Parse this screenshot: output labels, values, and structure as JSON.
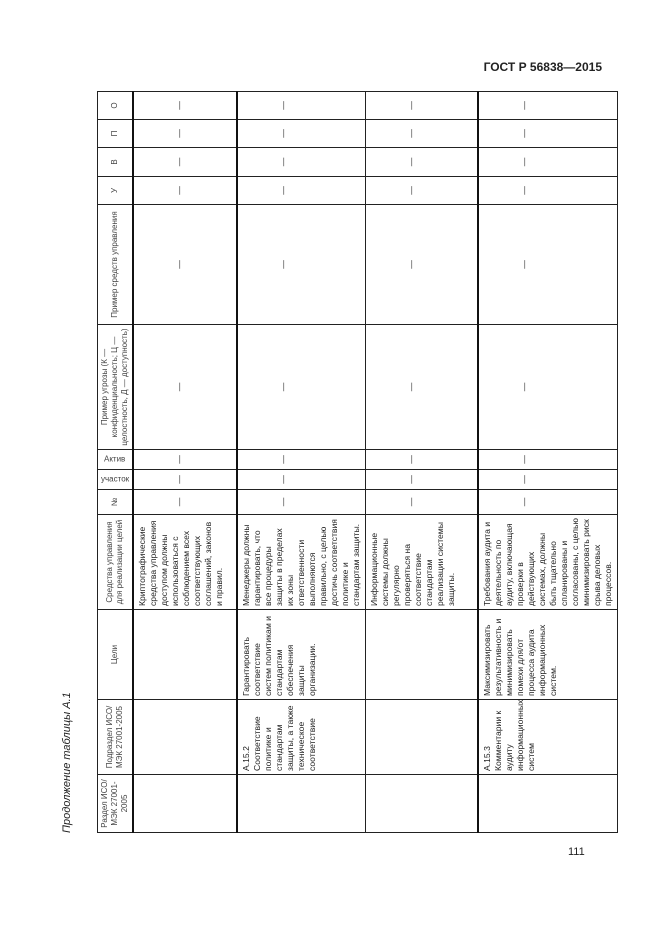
{
  "header": {
    "standard": "ГОСТ Р 56838—2015"
  },
  "caption": "Продолжение таблицы А.1",
  "table": {
    "columns": [
      "Раздел ИСО/МЭК 27001-2005",
      "Подраздел ИСО/МЭК 27001-2005",
      "Цели",
      "Средства управления для реализации целей",
      "№",
      "участок",
      "Актив",
      "Пример угрозы (К — конфиденциальность; Ц — целостность, Д — доступность)",
      "Пример средств управления",
      "У",
      "В",
      "П",
      "О"
    ],
    "rows": [
      [
        "",
        "",
        "",
        "Криптографические средства управления доступом должны использоваться с соблюдением всех соответствующих соглашений, законов и правил.",
        "—",
        "—",
        "—",
        "—",
        "—",
        "—",
        "—",
        "—",
        "—"
      ],
      [
        "",
        "А.15.2 Соответствие политике и стандартам защиты, а также техническое соответствие",
        "Гарантировать соответствие систем политикам и стандартам обеспечения защиты организации.",
        "Менеджеры должны гарантировать, что все процедуры защиты в пределах их зоны ответственности выполняются правильно, с целью достичь соответствия политике и стандартам защиты.",
        "—",
        "—",
        "—",
        "—",
        "—",
        "—",
        "—",
        "—",
        "—"
      ],
      [
        "",
        "",
        "",
        "Информационные системы должны регулярно проверяться на соответствие стандартам реализации системы защиты.",
        "—",
        "—",
        "—",
        "—",
        "—",
        "—",
        "—",
        "—",
        "—"
      ],
      [
        "",
        "А.15.3 Комментарии к аудиту информационных систем",
        "Максимизировать результативность и минимизировать помехи для/от процесса аудита информационных систем.",
        "Требования аудита и деятельность по аудиту, включающая проверки в действующих системах, должны быть тщательно спланированы и согласованы, с целью минимизировать риск срыва деловых процессов.",
        "—",
        "—",
        "—",
        "—",
        "—",
        "—",
        "—",
        "—",
        "—"
      ]
    ]
  },
  "page_number": "111"
}
